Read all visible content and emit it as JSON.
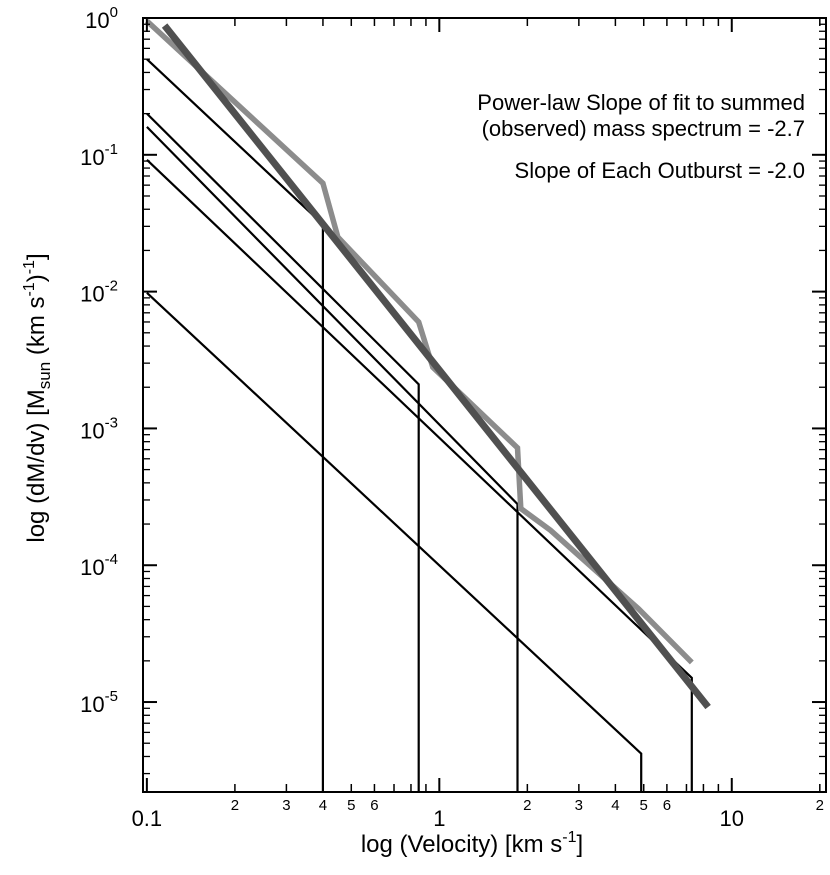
{
  "chart_data": {
    "type": "line",
    "title": "",
    "xlabel": {
      "main": "log (Velocity)  [km s",
      "sup": "-1",
      "tail": "]"
    },
    "ylabel": {
      "main": "log (dM/dv) [M",
      "sub": "sun",
      "mid": " (km s",
      "sup1": "-1",
      "mid2": ")",
      "sup2": "-1",
      "tail": "]"
    },
    "x_scale": "log",
    "y_scale": "log",
    "xlim": [
      0.097,
      21
    ],
    "ylim": [
      2.2e-06,
      1.0
    ],
    "grid": false,
    "x_major_ticks": [
      {
        "value": 0.1,
        "label": "0.1"
      },
      {
        "value": 1,
        "label": "1"
      },
      {
        "value": 10,
        "label": "10"
      }
    ],
    "x_minor_ticks": [
      {
        "value": 0.2,
        "label": "2"
      },
      {
        "value": 0.3,
        "label": "3"
      },
      {
        "value": 0.4,
        "label": "4"
      },
      {
        "value": 0.5,
        "label": "5"
      },
      {
        "value": 0.6,
        "label": "6"
      },
      {
        "value": 2,
        "label": "2"
      },
      {
        "value": 3,
        "label": "3"
      },
      {
        "value": 4,
        "label": "4"
      },
      {
        "value": 5,
        "label": "5"
      },
      {
        "value": 6,
        "label": "6"
      },
      {
        "value": 20,
        "label": "2"
      }
    ],
    "y_major_ticks": [
      {
        "value": 1,
        "base": "10",
        "exp": "0"
      },
      {
        "value": 0.1,
        "base": "10",
        "exp": "-1"
      },
      {
        "value": 0.01,
        "base": "10",
        "exp": "-2"
      },
      {
        "value": 0.001,
        "base": "10",
        "exp": "-3"
      },
      {
        "value": 0.0001,
        "base": "10",
        "exp": "-4"
      },
      {
        "value": 1e-05,
        "base": "10",
        "exp": "-5"
      }
    ],
    "annotations": [
      "Power-law Slope of fit to summed",
      "(observed) mass spectrum = -2.7",
      "Slope of Each Outburst = -2.0"
    ],
    "series": [
      {
        "kind": "outburst",
        "color": "#000000",
        "x": [
          0.1,
          0.4,
          0.4
        ],
        "y": [
          0.5,
          0.031,
          2.2e-06
        ]
      },
      {
        "kind": "outburst",
        "color": "#000000",
        "x": [
          0.1,
          0.85,
          0.85
        ],
        "y": [
          0.2,
          0.0021,
          2.2e-06
        ]
      },
      {
        "kind": "outburst",
        "color": "#000000",
        "x": [
          0.1,
          1.85,
          1.85
        ],
        "y": [
          0.16,
          0.00028,
          2.2e-06
        ]
      },
      {
        "kind": "outburst",
        "color": "#000000",
        "x": [
          0.1,
          7.3,
          7.3
        ],
        "y": [
          0.092,
          1.5e-05,
          2.2e-06
        ]
      },
      {
        "kind": "outburst",
        "color": "#000000",
        "x": [
          0.1,
          4.9,
          4.9
        ],
        "y": [
          0.0098,
          4.2e-06,
          2.2e-06
        ]
      },
      {
        "kind": "summed",
        "color": "#8c8c8c",
        "x": [
          0.1,
          0.4,
          0.45,
          0.85,
          0.95,
          1.85,
          1.9,
          2.4,
          4.8,
          7.3
        ],
        "y": [
          0.95,
          0.062,
          0.025,
          0.006,
          0.0028,
          0.00072,
          0.00026,
          0.00018,
          4.8e-05,
          1.95e-05
        ]
      },
      {
        "kind": "fit",
        "color": "#505050",
        "x": [
          0.115,
          8.3
        ],
        "y": [
          0.88,
          9.2e-06
        ]
      }
    ]
  }
}
